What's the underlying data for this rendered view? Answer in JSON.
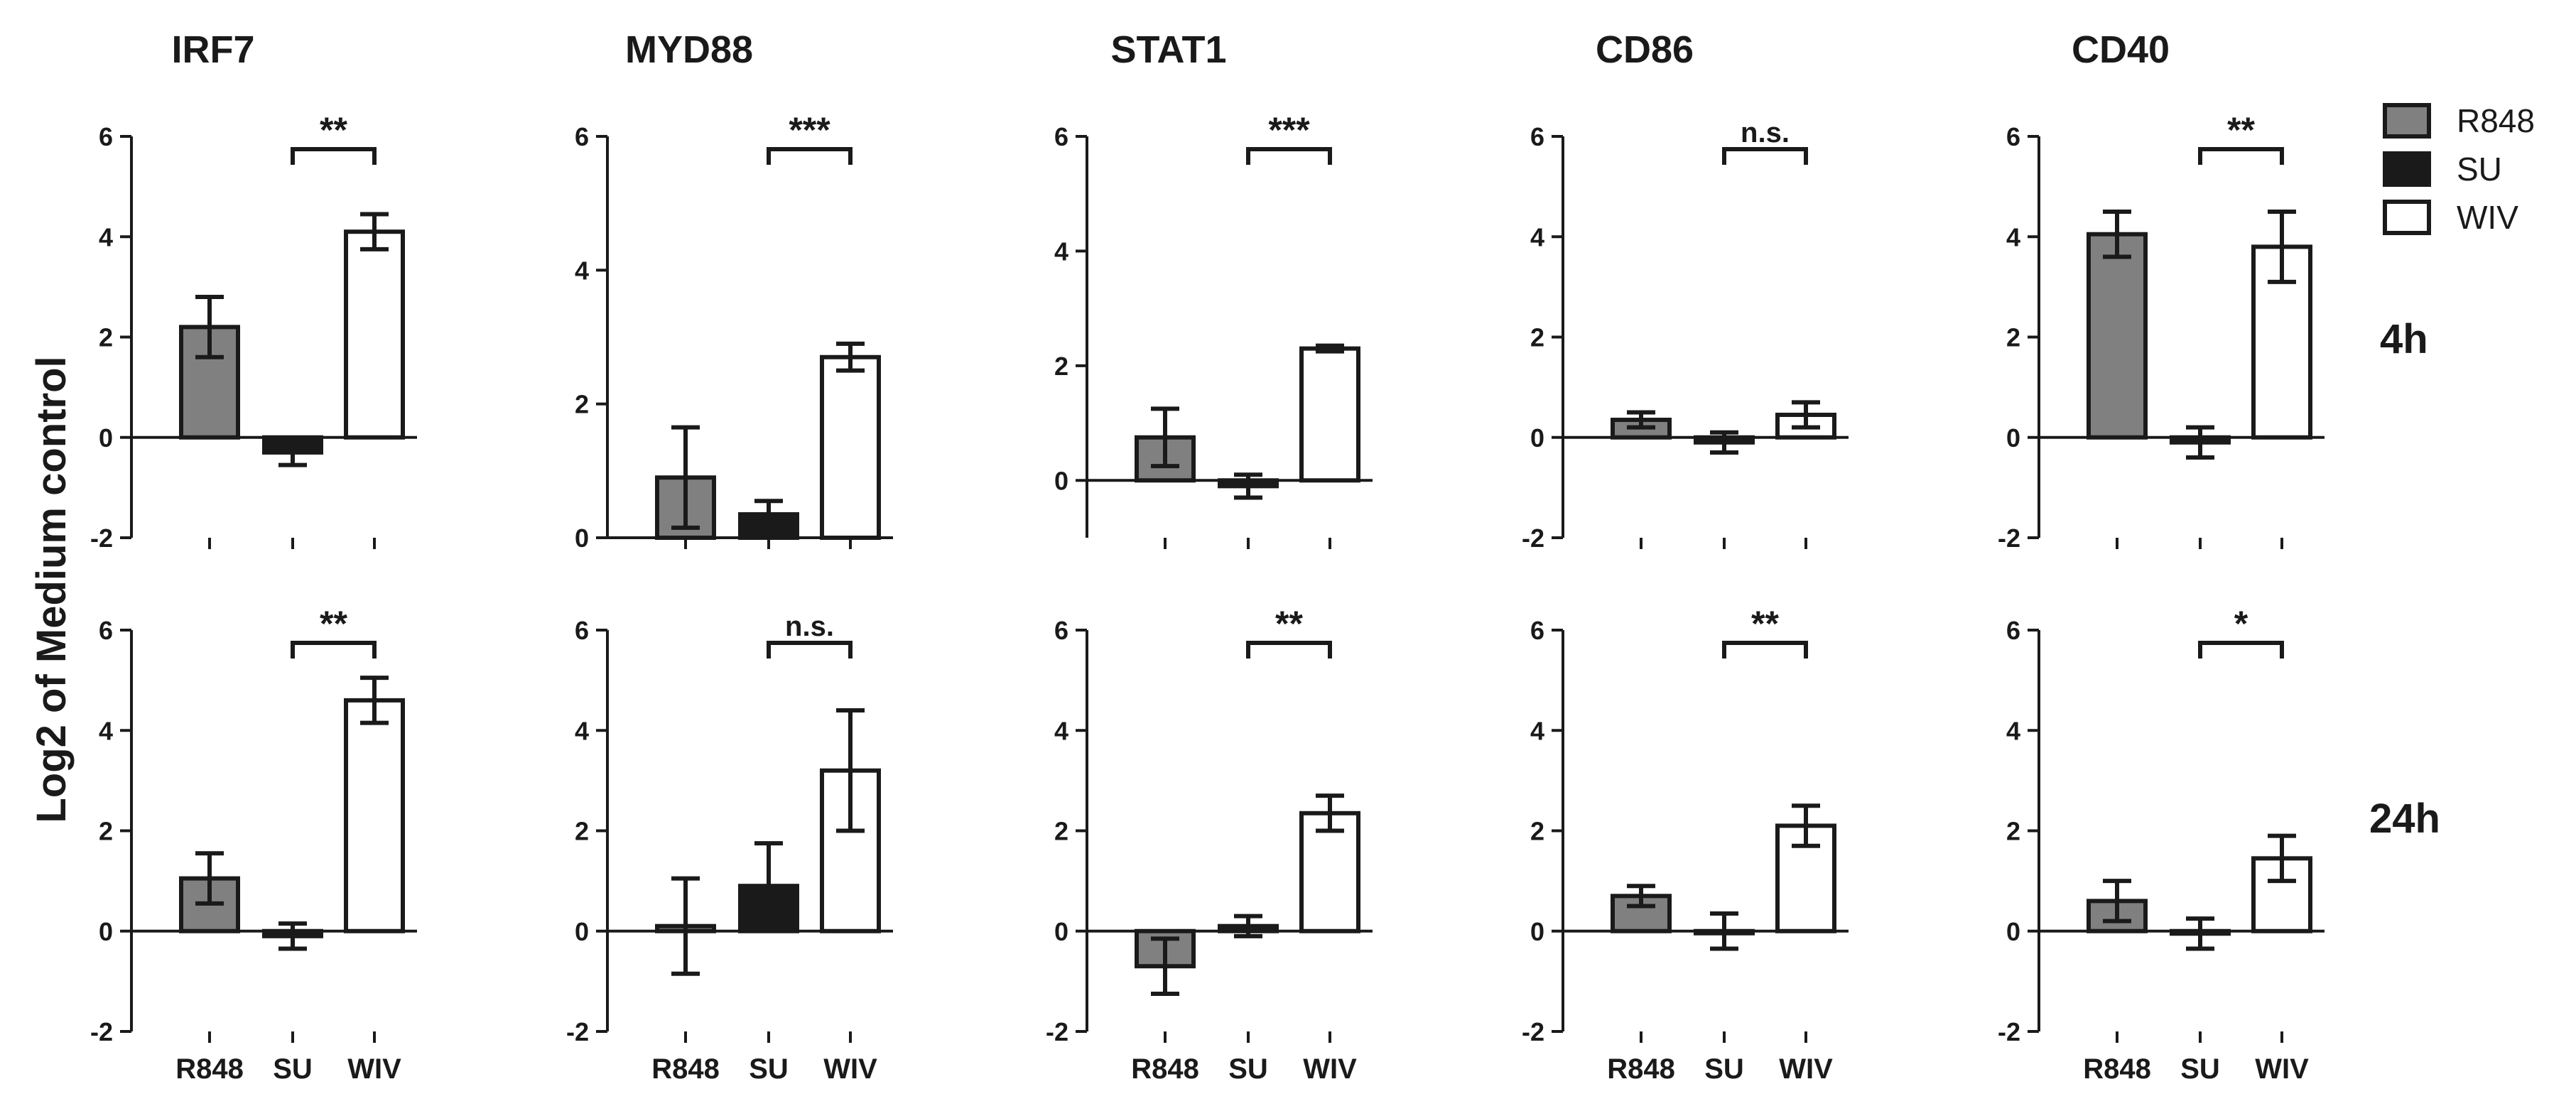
{
  "y_axis_label": "Log2 of Medium control",
  "row_labels": [
    "4h",
    "24h"
  ],
  "legend": [
    {
      "name": "R848",
      "color": "#808080"
    },
    {
      "name": "SU",
      "color": "#1a1a1a"
    },
    {
      "name": "WIV",
      "color": "#ffffff"
    }
  ],
  "colors": {
    "R848": "#808080",
    "SU": "#1a1a1a",
    "WIV": "#ffffff",
    "stroke": "#1a1a1a"
  },
  "chart_data": [
    {
      "type": "bar",
      "gene": "IRF7",
      "timepoint": "4h",
      "title": "IRF7",
      "categories": [
        "R848",
        "SU",
        "WIV"
      ],
      "values": [
        2.2,
        -0.3,
        4.1
      ],
      "errors": [
        0.6,
        0.25,
        0.35
      ],
      "ylim": [
        -2,
        6
      ],
      "yticks": [
        "-2",
        "0",
        "2",
        "4",
        "6"
      ],
      "significance": "**"
    },
    {
      "type": "bar",
      "gene": "MYD88",
      "timepoint": "4h",
      "title": "MYD88",
      "categories": [
        "R848",
        "SU",
        "WIV"
      ],
      "values": [
        0.9,
        0.35,
        2.7
      ],
      "errors": [
        0.75,
        0.2,
        0.2
      ],
      "ylim": [
        0,
        6
      ],
      "yticks": [
        "0",
        "2",
        "4",
        "6"
      ],
      "significance": "***"
    },
    {
      "type": "bar",
      "gene": "STAT1",
      "timepoint": "4h",
      "title": "STAT1",
      "categories": [
        "R848",
        "SU",
        "WIV"
      ],
      "values": [
        0.75,
        -0.1,
        2.3
      ],
      "errors": [
        0.5,
        0.2,
        0.05
      ],
      "ylim": [
        -1,
        6
      ],
      "yticks": [
        "0",
        "2",
        "4",
        "6"
      ],
      "significance": "***"
    },
    {
      "type": "bar",
      "gene": "CD86",
      "timepoint": "4h",
      "title": "CD86",
      "categories": [
        "R848",
        "SU",
        "WIV"
      ],
      "values": [
        0.35,
        -0.1,
        0.45
      ],
      "errors": [
        0.15,
        0.2,
        0.25
      ],
      "ylim": [
        -2,
        6
      ],
      "yticks": [
        "-2",
        "0",
        "2",
        "4",
        "6"
      ],
      "significance": "n.s."
    },
    {
      "type": "bar",
      "gene": "CD40",
      "timepoint": "4h",
      "title": "CD40",
      "categories": [
        "R848",
        "SU",
        "WIV"
      ],
      "values": [
        4.05,
        -0.1,
        3.8
      ],
      "errors": [
        0.45,
        0.3,
        0.7
      ],
      "ylim": [
        -2,
        6
      ],
      "yticks": [
        "-2",
        "0",
        "2",
        "4",
        "6"
      ],
      "significance": "**"
    },
    {
      "type": "bar",
      "gene": "IRF7",
      "timepoint": "24h",
      "title": "",
      "categories": [
        "R848",
        "SU",
        "WIV"
      ],
      "values": [
        1.05,
        -0.1,
        4.6
      ],
      "errors": [
        0.5,
        0.25,
        0.45
      ],
      "ylim": [
        -2,
        6
      ],
      "yticks": [
        "-2",
        "0",
        "2",
        "4",
        "6"
      ],
      "significance": "**"
    },
    {
      "type": "bar",
      "gene": "MYD88",
      "timepoint": "24h",
      "title": "",
      "categories": [
        "R848",
        "SU",
        "WIV"
      ],
      "values": [
        0.1,
        0.9,
        3.2
      ],
      "errors": [
        0.95,
        0.85,
        1.2
      ],
      "ylim": [
        -2,
        6
      ],
      "yticks": [
        "-2",
        "0",
        "2",
        "4",
        "6"
      ],
      "significance": "n.s."
    },
    {
      "type": "bar",
      "gene": "STAT1",
      "timepoint": "24h",
      "title": "",
      "categories": [
        "R848",
        "SU",
        "WIV"
      ],
      "values": [
        -0.7,
        0.1,
        2.35
      ],
      "errors": [
        0.55,
        0.2,
        0.35
      ],
      "ylim": [
        -2,
        6
      ],
      "yticks": [
        "-2",
        "0",
        "2",
        "4",
        "6"
      ],
      "significance": "**"
    },
    {
      "type": "bar",
      "gene": "CD86",
      "timepoint": "24h",
      "title": "",
      "categories": [
        "R848",
        "SU",
        "WIV"
      ],
      "values": [
        0.7,
        0.0,
        2.1
      ],
      "errors": [
        0.2,
        0.35,
        0.4
      ],
      "ylim": [
        -2,
        6
      ],
      "yticks": [
        "-2",
        "0",
        "2",
        "4",
        "6"
      ],
      "significance": "**"
    },
    {
      "type": "bar",
      "gene": "CD40",
      "timepoint": "24h",
      "title": "",
      "categories": [
        "R848",
        "SU",
        "WIV"
      ],
      "values": [
        0.6,
        -0.05,
        1.45
      ],
      "errors": [
        0.4,
        0.3,
        0.45
      ],
      "ylim": [
        -2,
        6
      ],
      "yticks": [
        "-2",
        "0",
        "2",
        "4",
        "6"
      ],
      "significance": "*"
    }
  ]
}
